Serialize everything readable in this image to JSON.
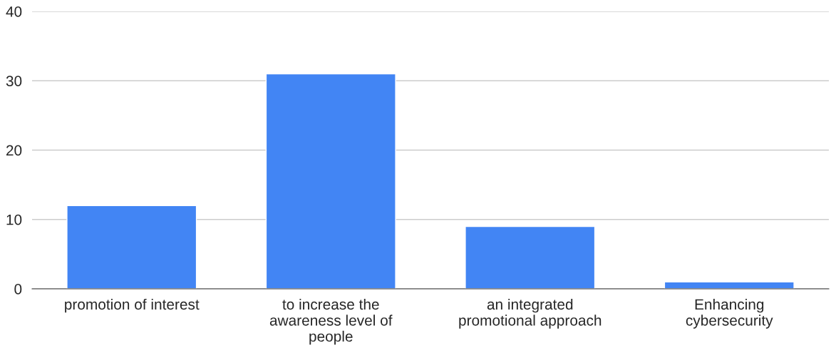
{
  "chart_data": {
    "type": "bar",
    "categories": [
      "promotion of interest",
      "to increase the\nawareness level of\npeople",
      "an integrated\npromotional approach",
      "Enhancing\ncybersecurity"
    ],
    "values": [
      12,
      31,
      9,
      1
    ],
    "color": "#4285f4",
    "ylim": [
      0,
      40
    ],
    "yticks": [
      0,
      10,
      20,
      30,
      40
    ],
    "grid": "y",
    "legend": false
  }
}
